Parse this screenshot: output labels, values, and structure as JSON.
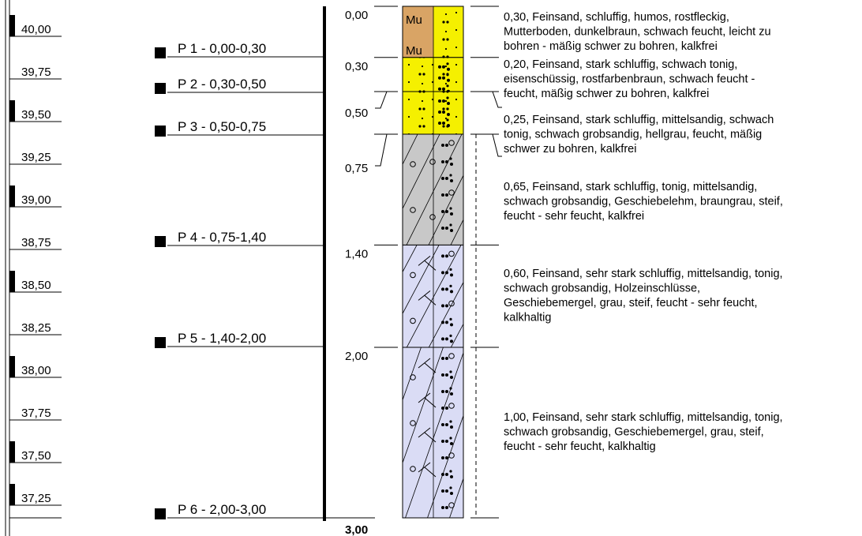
{
  "elevations": [
    "40,00",
    "39,75",
    "39,50",
    "39,25",
    "39,00",
    "38,75",
    "38,50",
    "38,25",
    "38,00",
    "37,75",
    "37,50",
    "37,25"
  ],
  "samples": [
    {
      "label": "P 1 - 0,00-0,30"
    },
    {
      "label": "P 2 - 0,30-0,50"
    },
    {
      "label": "P 3 - 0,50-0,75"
    },
    {
      "label": "P 4 - 0,75-1,40"
    },
    {
      "label": "P 5 - 1,40-2,00"
    },
    {
      "label": "P 6 - 2,00-3,00"
    }
  ],
  "depths": [
    {
      "value": 0.0,
      "label": "0,00"
    },
    {
      "value": 0.3,
      "label": "0,30"
    },
    {
      "value": 0.5,
      "label": "0,50"
    },
    {
      "value": 0.75,
      "label": "0,75"
    },
    {
      "value": 1.4,
      "label": "1,40"
    },
    {
      "value": 2.0,
      "label": "2,00"
    },
    {
      "value": 3.0,
      "label": "3,00"
    }
  ],
  "layers": [
    {
      "top": 0.0,
      "bottom": 0.3,
      "pattern": "topsoil",
      "color": "#d9a465",
      "symbol": "Mu",
      "lines": [
        "0,30, Feinsand, schluffig, humos, rostfleckig,",
        "Mutterboden, dunkelbraun, schwach feucht, leicht zu",
        "bohren - mäßig schwer zu bohren, kalkfrei"
      ]
    },
    {
      "top": 0.3,
      "bottom": 0.5,
      "pattern": "sand",
      "color": "#f5f000",
      "lines": [
        "0,20, Feinsand, stark schluffig, schwach tonig,",
        "eisenschüssig, rostfarbenbraun, schwach feucht -",
        "feucht, mäßig schwer zu bohren, kalkfrei"
      ]
    },
    {
      "top": 0.5,
      "bottom": 0.75,
      "pattern": "sand",
      "color": "#f5f000",
      "lines": [
        "0,25, Feinsand, stark schluffig, mittelsandig, schwach",
        "tonig, schwach grobsandig, hellgrau, feucht, mäßig",
        "schwer zu bohren, kalkfrei"
      ]
    },
    {
      "top": 0.75,
      "bottom": 1.4,
      "pattern": "loam",
      "color": "#c8c8c8",
      "lines": [
        "0,65, Feinsand, stark schluffig, tonig, mittelsandig,",
        "schwach grobsandig, Geschiebelehm, braungrau, steif,",
        "feucht - sehr feucht, kalkfrei"
      ]
    },
    {
      "top": 1.4,
      "bottom": 2.0,
      "pattern": "marl",
      "color": "#dadcf5",
      "lines": [
        "0,60, Feinsand, sehr stark schluffig, mittelsandig, tonig,",
        "schwach grobsandig, Holzeinschlüsse,",
        "Geschiebemergel, grau, steif, feucht - sehr feucht,",
        "kalkhaltig"
      ]
    },
    {
      "top": 2.0,
      "bottom": 3.0,
      "pattern": "marl",
      "color": "#dadcf5",
      "lines": [
        "1,00, Feinsand, sehr stark schluffig, mittelsandig, tonig,",
        "schwach grobsandig, Geschiebemergel, grau, steif,",
        "feucht - sehr feucht, kalkhaltig"
      ]
    }
  ]
}
